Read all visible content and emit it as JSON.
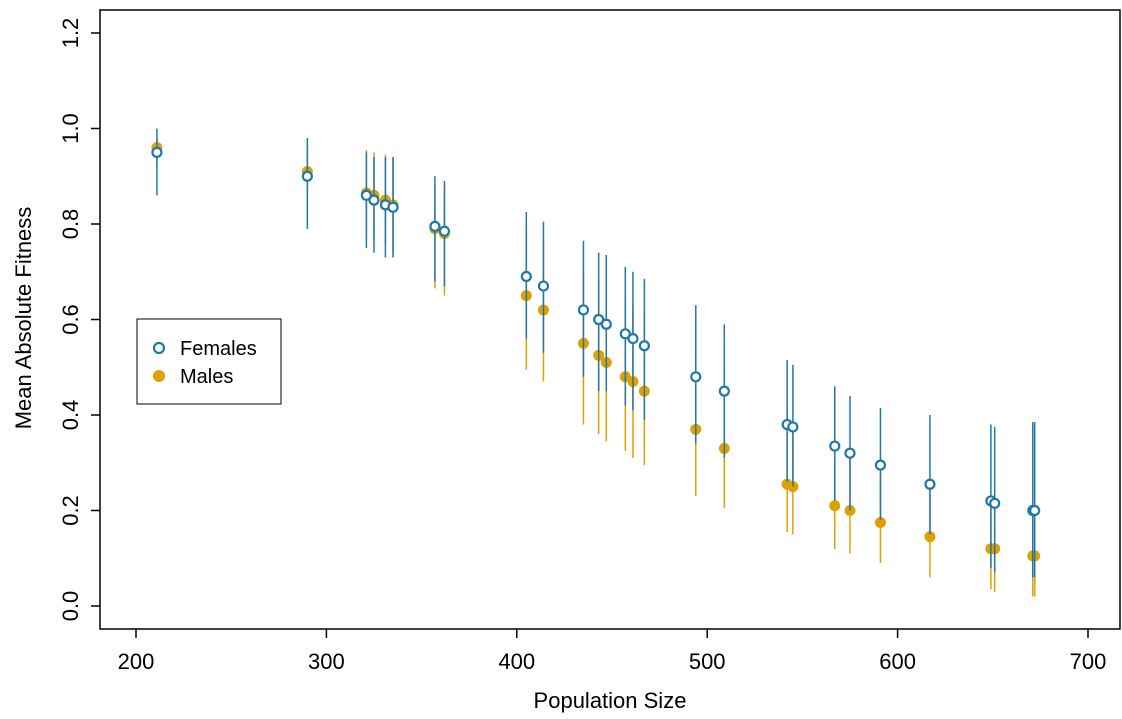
{
  "chart_data": {
    "type": "scatter",
    "title": "",
    "xlabel": "Population Size",
    "ylabel": "Mean Absolute Fitness",
    "xlim": [
      200,
      700
    ],
    "ylim": [
      0.0,
      1.2
    ],
    "x_ticks": [
      "200",
      "300",
      "400",
      "500",
      "600",
      "700"
    ],
    "y_ticks": [
      "0.0",
      "0.2",
      "0.4",
      "0.6",
      "0.8",
      "1.0",
      "1.2"
    ],
    "legend_position": "left",
    "grid": false,
    "series": [
      {
        "name": "Females",
        "color": "#1f78a8",
        "marker": "open-circle",
        "points": [
          {
            "x": 211,
            "y": 0.95,
            "lo": 0.86,
            "hi": 1.0
          },
          {
            "x": 290,
            "y": 0.9,
            "lo": 0.79,
            "hi": 0.98
          },
          {
            "x": 321,
            "y": 0.86,
            "lo": 0.75,
            "hi": 0.95
          },
          {
            "x": 325,
            "y": 0.85,
            "lo": 0.74,
            "hi": 0.94
          },
          {
            "x": 331,
            "y": 0.84,
            "lo": 0.73,
            "hi": 0.94
          },
          {
            "x": 335,
            "y": 0.835,
            "lo": 0.73,
            "hi": 0.94
          },
          {
            "x": 357,
            "y": 0.795,
            "lo": 0.68,
            "hi": 0.9
          },
          {
            "x": 362,
            "y": 0.785,
            "lo": 0.67,
            "hi": 0.89
          },
          {
            "x": 405,
            "y": 0.69,
            "lo": 0.56,
            "hi": 0.825
          },
          {
            "x": 414,
            "y": 0.67,
            "lo": 0.53,
            "hi": 0.805
          },
          {
            "x": 435,
            "y": 0.62,
            "lo": 0.48,
            "hi": 0.765
          },
          {
            "x": 443,
            "y": 0.6,
            "lo": 0.45,
            "hi": 0.74
          },
          {
            "x": 447,
            "y": 0.59,
            "lo": 0.45,
            "hi": 0.735
          },
          {
            "x": 457,
            "y": 0.57,
            "lo": 0.42,
            "hi": 0.71
          },
          {
            "x": 461,
            "y": 0.56,
            "lo": 0.41,
            "hi": 0.7
          },
          {
            "x": 467,
            "y": 0.545,
            "lo": 0.39,
            "hi": 0.685
          },
          {
            "x": 494,
            "y": 0.48,
            "lo": 0.34,
            "hi": 0.63
          },
          {
            "x": 509,
            "y": 0.45,
            "lo": 0.31,
            "hi": 0.59
          },
          {
            "x": 542,
            "y": 0.38,
            "lo": 0.26,
            "hi": 0.515
          },
          {
            "x": 545,
            "y": 0.375,
            "lo": 0.25,
            "hi": 0.505
          },
          {
            "x": 567,
            "y": 0.335,
            "lo": 0.22,
            "hi": 0.46
          },
          {
            "x": 575,
            "y": 0.32,
            "lo": 0.2,
            "hi": 0.44
          },
          {
            "x": 591,
            "y": 0.295,
            "lo": 0.18,
            "hi": 0.415
          },
          {
            "x": 617,
            "y": 0.255,
            "lo": 0.15,
            "hi": 0.4
          },
          {
            "x": 649,
            "y": 0.22,
            "lo": 0.08,
            "hi": 0.38
          },
          {
            "x": 651,
            "y": 0.215,
            "lo": 0.07,
            "hi": 0.375
          },
          {
            "x": 671,
            "y": 0.2,
            "lo": 0.06,
            "hi": 0.385
          },
          {
            "x": 672,
            "y": 0.2,
            "lo": 0.06,
            "hi": 0.385
          }
        ]
      },
      {
        "name": "Males",
        "color": "#e0a000",
        "marker": "filled-circle",
        "points": [
          {
            "x": 211,
            "y": 0.96,
            "lo": 0.93,
            "hi": 0.98
          },
          {
            "x": 290,
            "y": 0.91,
            "lo": 0.87,
            "hi": 0.96
          },
          {
            "x": 321,
            "y": 0.865,
            "lo": 0.77,
            "hi": 0.955
          },
          {
            "x": 325,
            "y": 0.86,
            "lo": 0.77,
            "hi": 0.95
          },
          {
            "x": 331,
            "y": 0.85,
            "lo": 0.76,
            "hi": 0.945
          },
          {
            "x": 335,
            "y": 0.84,
            "lo": 0.74,
            "hi": 0.94
          },
          {
            "x": 357,
            "y": 0.79,
            "lo": 0.665,
            "hi": 0.88
          },
          {
            "x": 362,
            "y": 0.78,
            "lo": 0.65,
            "hi": 0.87
          },
          {
            "x": 405,
            "y": 0.65,
            "lo": 0.495,
            "hi": 0.79
          },
          {
            "x": 414,
            "y": 0.62,
            "lo": 0.47,
            "hi": 0.76
          },
          {
            "x": 435,
            "y": 0.55,
            "lo": 0.38,
            "hi": 0.7
          },
          {
            "x": 443,
            "y": 0.525,
            "lo": 0.36,
            "hi": 0.68
          },
          {
            "x": 447,
            "y": 0.51,
            "lo": 0.345,
            "hi": 0.665
          },
          {
            "x": 457,
            "y": 0.48,
            "lo": 0.325,
            "hi": 0.64
          },
          {
            "x": 461,
            "y": 0.47,
            "lo": 0.31,
            "hi": 0.63
          },
          {
            "x": 467,
            "y": 0.45,
            "lo": 0.295,
            "hi": 0.61
          },
          {
            "x": 494,
            "y": 0.37,
            "lo": 0.23,
            "hi": 0.53
          },
          {
            "x": 509,
            "y": 0.33,
            "lo": 0.205,
            "hi": 0.49
          },
          {
            "x": 542,
            "y": 0.255,
            "lo": 0.155,
            "hi": 0.4
          },
          {
            "x": 545,
            "y": 0.25,
            "lo": 0.15,
            "hi": 0.39
          },
          {
            "x": 567,
            "y": 0.21,
            "lo": 0.12,
            "hi": 0.33
          },
          {
            "x": 575,
            "y": 0.2,
            "lo": 0.11,
            "hi": 0.32
          },
          {
            "x": 591,
            "y": 0.175,
            "lo": 0.09,
            "hi": 0.28
          },
          {
            "x": 617,
            "y": 0.145,
            "lo": 0.06,
            "hi": 0.24
          },
          {
            "x": 649,
            "y": 0.12,
            "lo": 0.035,
            "hi": 0.22
          },
          {
            "x": 651,
            "y": 0.12,
            "lo": 0.03,
            "hi": 0.215
          },
          {
            "x": 671,
            "y": 0.105,
            "lo": 0.02,
            "hi": 0.205
          },
          {
            "x": 672,
            "y": 0.105,
            "lo": 0.02,
            "hi": 0.205
          }
        ]
      }
    ]
  }
}
